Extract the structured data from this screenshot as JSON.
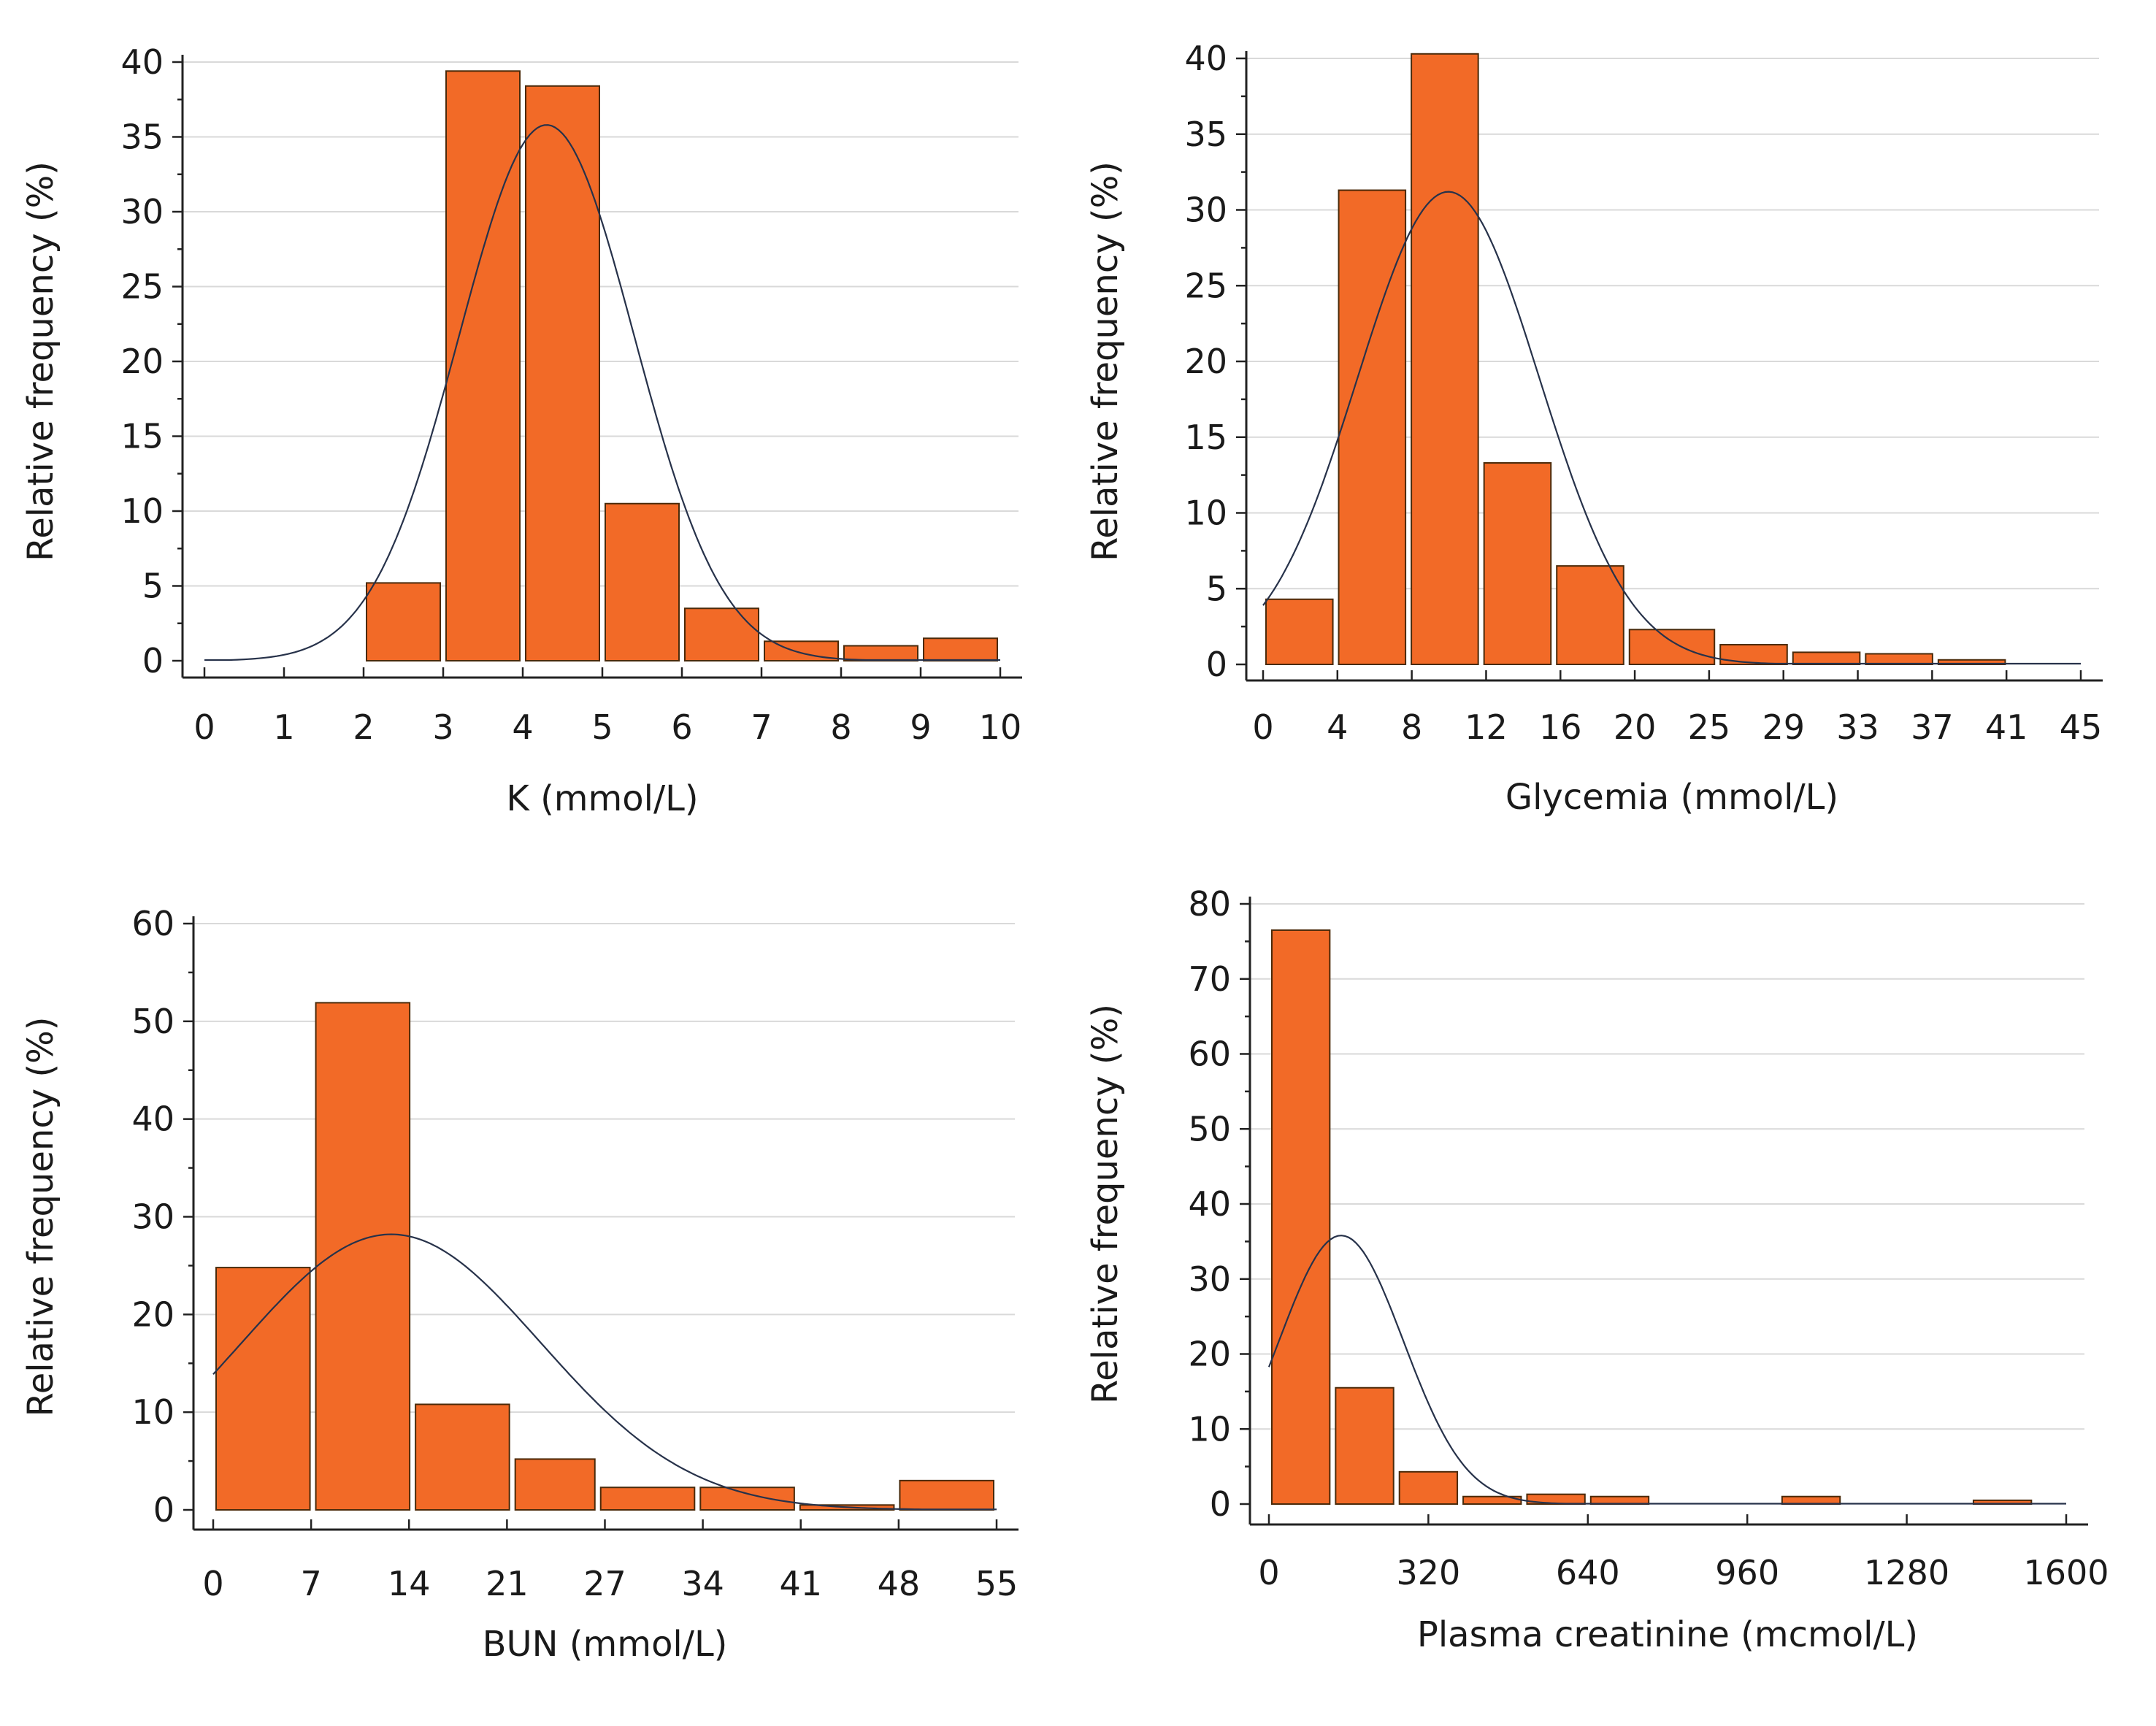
{
  "colors": {
    "bar": "#f26a27",
    "curve": "#27324a"
  },
  "chart_data": [
    {
      "type": "bar",
      "xlabel": "K (mmol/L)",
      "ylabel": "Relative frequency (%)",
      "x_ticks": [
        "0",
        "1",
        "2",
        "3",
        "4",
        "5",
        "6",
        "7",
        "8",
        "9",
        "10"
      ],
      "y_ticks": [
        "0",
        "5",
        "10",
        "15",
        "20",
        "25",
        "30",
        "35",
        "40"
      ],
      "xlim": [
        0,
        10
      ],
      "ylim": [
        0,
        40
      ],
      "bins": [
        {
          "x0": 2,
          "x1": 3,
          "value": 5.2
        },
        {
          "x0": 3,
          "x1": 4,
          "value": 39.4
        },
        {
          "x0": 4,
          "x1": 5,
          "value": 38.4
        },
        {
          "x0": 5,
          "x1": 6,
          "value": 10.5
        },
        {
          "x0": 6,
          "x1": 7,
          "value": 3.5
        },
        {
          "x0": 7,
          "x1": 8,
          "value": 1.3
        },
        {
          "x0": 8,
          "x1": 9,
          "value": 1.0
        },
        {
          "x0": 9,
          "x1": 10,
          "value": 1.5
        }
      ],
      "normal_curve": {
        "mean": 4.3,
        "sd": 1.1,
        "peak": 35.8
      }
    },
    {
      "type": "bar",
      "xlabel": "Glycemia  (mmol/L)",
      "ylabel": "Relative frequency (%)",
      "x_ticks": [
        "0",
        "4",
        "8",
        "12",
        "16",
        "20",
        "25",
        "29",
        "33",
        "37",
        "41",
        "45"
      ],
      "y_ticks": [
        "0",
        "5",
        "10",
        "15",
        "20",
        "25",
        "30",
        "35",
        "40"
      ],
      "xlim": [
        0,
        45
      ],
      "ylim": [
        0,
        40
      ],
      "bins": [
        {
          "x0": 0,
          "x1": 4,
          "value": 4.3
        },
        {
          "x0": 4,
          "x1": 8,
          "value": 31.3
        },
        {
          "x0": 8,
          "x1": 12,
          "value": 40.3
        },
        {
          "x0": 12,
          "x1": 16,
          "value": 13.3
        },
        {
          "x0": 16,
          "x1": 20,
          "value": 6.5
        },
        {
          "x0": 20,
          "x1": 25,
          "value": 2.3
        },
        {
          "x0": 25,
          "x1": 29,
          "value": 1.3
        },
        {
          "x0": 29,
          "x1": 33,
          "value": 0.8
        },
        {
          "x0": 33,
          "x1": 37,
          "value": 0.7
        },
        {
          "x0": 37,
          "x1": 41,
          "value": 0.3
        }
      ],
      "normal_curve": {
        "mean": 10.2,
        "sd": 5.0,
        "peak": 31.2
      }
    },
    {
      "type": "bar",
      "xlabel": "BUN (mmol/L)",
      "ylabel": "Relative frequency (%)",
      "x_ticks": [
        "0",
        "7",
        "14",
        "21",
        "27",
        "34",
        "41",
        "48",
        "55"
      ],
      "y_ticks": [
        "0",
        "10",
        "20",
        "30",
        "40",
        "50",
        "60"
      ],
      "xlim": [
        0,
        55
      ],
      "ylim": [
        0,
        60
      ],
      "bins": [
        {
          "x0": 0,
          "x1": 7,
          "value": 24.8
        },
        {
          "x0": 7,
          "x1": 14,
          "value": 51.9
        },
        {
          "x0": 14,
          "x1": 21,
          "value": 10.8
        },
        {
          "x0": 21,
          "x1": 27,
          "value": 5.2
        },
        {
          "x0": 27,
          "x1": 34,
          "value": 2.3
        },
        {
          "x0": 34,
          "x1": 41,
          "value": 2.3
        },
        {
          "x0": 41,
          "x1": 48,
          "value": 0.5
        },
        {
          "x0": 48,
          "x1": 55,
          "value": 3.0
        }
      ],
      "normal_curve": {
        "mean": 12.5,
        "sd": 10.5,
        "peak": 28.2
      }
    },
    {
      "type": "bar",
      "xlabel": "Plasma creatinine (mcmol/L)",
      "ylabel": "Relative frequency (%)",
      "x_ticks": [
        "0",
        "320",
        "640",
        "960",
        "1280",
        "1600"
      ],
      "y_ticks": [
        "0",
        "10",
        "20",
        "30",
        "40",
        "50",
        "60",
        "70",
        "80"
      ],
      "xlim": [
        0,
        1600
      ],
      "ylim": [
        0,
        80
      ],
      "bins": [
        {
          "x0": 0,
          "x1": 128,
          "value": 76.5
        },
        {
          "x0": 128,
          "x1": 256,
          "value": 15.5
        },
        {
          "x0": 256,
          "x1": 384,
          "value": 4.3
        },
        {
          "x0": 384,
          "x1": 512,
          "value": 1.0
        },
        {
          "x0": 512,
          "x1": 640,
          "value": 1.3
        },
        {
          "x0": 640,
          "x1": 768,
          "value": 1.0
        },
        {
          "x0": 768,
          "x1": 896,
          "value": 0
        },
        {
          "x0": 896,
          "x1": 1024,
          "value": 0
        },
        {
          "x0": 1024,
          "x1": 1152,
          "value": 1.0
        },
        {
          "x0": 1152,
          "x1": 1280,
          "value": 0
        },
        {
          "x0": 1280,
          "x1": 1408,
          "value": 0
        },
        {
          "x0": 1408,
          "x1": 1536,
          "value": 0.5
        }
      ],
      "normal_curve": {
        "mean": 145,
        "sd": 125,
        "peak": 35.8
      }
    }
  ]
}
